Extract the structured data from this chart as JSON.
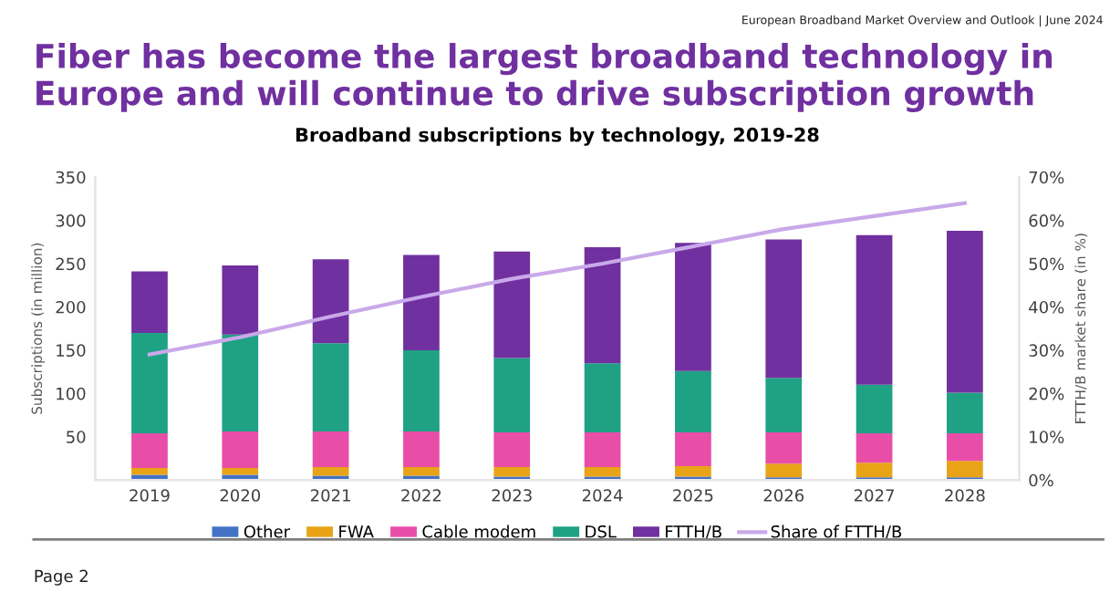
{
  "chart_data": {
    "type": "bar",
    "stacked": true,
    "title": "Broadband subscriptions by technology, 2019-28",
    "annotations": [
      "European Broadband Market Overview and Outlook | June 2024",
      "Fiber has become the largest broadband technology in Europe and will continue to drive subscription growth",
      "Page 2"
    ],
    "categories": [
      "2019",
      "2020",
      "2021",
      "2022",
      "2023",
      "2024",
      "2025",
      "2026",
      "2027",
      "2028"
    ],
    "series": [
      {
        "name": "Other",
        "color": "#4472c4",
        "values": [
          6,
          6,
          5,
          5,
          4,
          4,
          4,
          3,
          3,
          3
        ]
      },
      {
        "name": "FWA",
        "color": "#e8a317",
        "values": [
          8,
          8,
          10,
          10,
          11,
          11,
          12,
          16,
          17,
          19
        ]
      },
      {
        "name": "Cable modem",
        "color": "#e84ea8",
        "values": [
          40,
          42,
          41,
          41,
          40,
          40,
          39,
          36,
          34,
          32
        ]
      },
      {
        "name": "DSL",
        "color": "#1fa184",
        "values": [
          116,
          112,
          102,
          94,
          86,
          80,
          71,
          63,
          56,
          47
        ]
      },
      {
        "name": "FTTH/B",
        "color": "#7030a0",
        "values": [
          71,
          80,
          97,
          110,
          123,
          134,
          148,
          160,
          173,
          187
        ]
      },
      {
        "name": "Share of FTTH/B",
        "type": "line",
        "axis": "y2",
        "color": "#c9a9e9",
        "values": [
          29,
          33,
          37.8,
          42.3,
          46.5,
          50,
          54,
          58,
          61,
          64
        ]
      }
    ],
    "ylabel": "Subscriptions (in million)",
    "y2label": "FTTH/B market share (in %)",
    "ylim": [
      0,
      350
    ],
    "yticks": [
      50,
      100,
      150,
      200,
      250,
      300,
      350
    ],
    "y2lim": [
      0,
      70
    ],
    "y2ticks": [
      {
        "value": 0,
        "label": "0%"
      },
      {
        "value": 10,
        "label": "10%"
      },
      {
        "value": 20,
        "label": "20%"
      },
      {
        "value": 30,
        "label": "30%"
      },
      {
        "value": 40,
        "label": "40%"
      },
      {
        "value": 50,
        "label": "50%"
      },
      {
        "value": 60,
        "label": "60%"
      },
      {
        "value": 70,
        "label": "70%"
      }
    ],
    "grid": false,
    "legend": "bottom",
    "marker": "none",
    "line_style": "solid"
  }
}
